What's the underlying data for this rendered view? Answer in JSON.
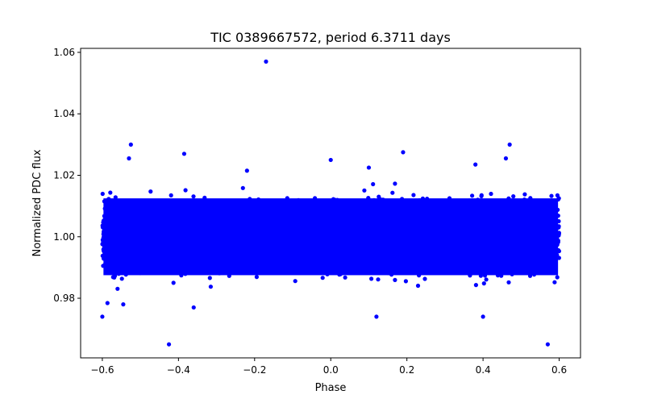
{
  "chart_data": {
    "type": "scatter",
    "title": "TIC 0389667572, period 6.3711 days",
    "xlabel": "Phase",
    "ylabel": "Normalized PDC flux",
    "xlim": [
      -0.657,
      0.656
    ],
    "ylim": [
      0.9606,
      1.0613
    ],
    "xticks": [
      -0.6,
      -0.4,
      -0.2,
      0.0,
      0.2,
      0.4,
      0.6
    ],
    "xtick_labels": [
      "−0.6",
      "−0.4",
      "−0.2",
      "0.0",
      "0.2",
      "0.4",
      "0.6"
    ],
    "yticks": [
      0.98,
      1.0,
      1.02,
      1.04,
      1.06
    ],
    "ytick_labels": [
      "0.98",
      "1.00",
      "1.02",
      "1.04",
      "1.06"
    ],
    "grid": false,
    "legend": "none",
    "color": "#0000ff",
    "band": {
      "phase_range": [
        -0.6,
        0.6
      ],
      "center": 1.0,
      "sigma": 0.0048,
      "wider_near_phases": [
        -0.58,
        0.4,
        0.59
      ],
      "approx_points": 5000
    },
    "outliers": [
      [
        -0.17,
        1.057
      ],
      [
        -0.525,
        1.03
      ],
      [
        0.47,
        1.03
      ],
      [
        -0.385,
        1.027
      ],
      [
        0.0,
        1.025
      ],
      [
        0.19,
        1.0275
      ],
      [
        -0.425,
        0.965
      ],
      [
        0.57,
        0.965
      ],
      [
        0.12,
        0.974
      ],
      [
        -0.6,
        0.974
      ],
      [
        -0.545,
        0.978
      ],
      [
        0.4,
        0.974
      ],
      [
        -0.36,
        0.977
      ],
      [
        0.46,
        1.0255
      ],
      [
        -0.53,
        1.0255
      ],
      [
        0.38,
        1.0235
      ],
      [
        0.1,
        1.0225
      ],
      [
        -0.22,
        1.0215
      ]
    ]
  }
}
